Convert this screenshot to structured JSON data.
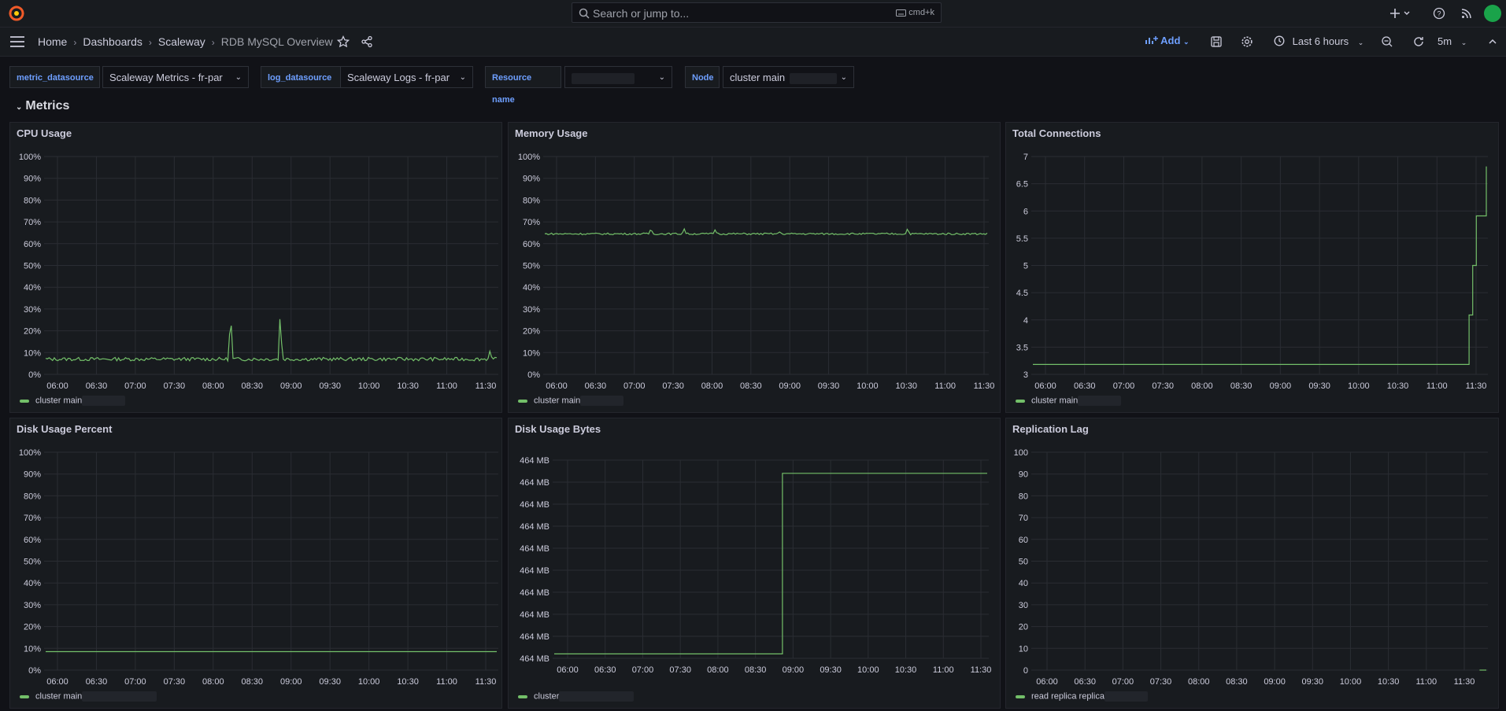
{
  "search": {
    "placeholder": "Search or jump to...",
    "shortcut": "cmd+k"
  },
  "breadcrumb": {
    "home": "Home",
    "dashboards": "Dashboards",
    "folder": "Scaleway",
    "current": "RDB MySQL Overview"
  },
  "toolbar": {
    "add_label": "Add",
    "time_range": "Last 6 hours",
    "refresh": "5m"
  },
  "variables": [
    {
      "label": "metric_datasource",
      "value": "Scaleway Metrics - fr-par"
    },
    {
      "label": "log_datasource",
      "value": "Scaleway Logs - fr-par"
    },
    {
      "label": "Resource name",
      "value": ""
    },
    {
      "label": "Node",
      "value": "cluster main"
    }
  ],
  "row": {
    "title": "Metrics"
  },
  "colors": {
    "series": "#73bf69",
    "accent": "#6e9fff",
    "grid": "#2a2d33"
  },
  "panels": [
    {
      "title": "CPU Usage",
      "legend": "cluster main",
      "chart_data": {
        "type": "line",
        "x": [
          "06:00",
          "06:30",
          "07:00",
          "07:30",
          "08:00",
          "08:30",
          "09:00",
          "09:30",
          "10:00",
          "10:30",
          "11:00",
          "11:30"
        ],
        "yticks": [
          "0%",
          "10%",
          "20%",
          "30%",
          "40%",
          "50%",
          "60%",
          "70%",
          "80%",
          "90%",
          "100%"
        ],
        "ylim": [
          0,
          100
        ],
        "series": [
          {
            "name": "cluster main",
            "baseline": 7,
            "spikes": [
              [
                0.41,
                30
              ],
              [
                0.52,
                29
              ],
              [
                0.985,
                11
              ]
            ]
          }
        ]
      }
    },
    {
      "title": "Memory Usage",
      "legend": "cluster main",
      "chart_data": {
        "type": "line",
        "x": [
          "06:00",
          "06:30",
          "07:00",
          "07:30",
          "08:00",
          "08:30",
          "09:00",
          "09:30",
          "10:00",
          "10:30",
          "11:00",
          "11:30"
        ],
        "yticks": [
          "0%",
          "10%",
          "20%",
          "30%",
          "40%",
          "50%",
          "60%",
          "70%",
          "80%",
          "90%",
          "100%"
        ],
        "ylim": [
          0,
          100
        ],
        "series": [
          {
            "name": "cluster main",
            "baseline": 64.5,
            "spikes": [
              [
                0.24,
                67
              ],
              [
                0.315,
                67
              ],
              [
                0.385,
                66.5
              ],
              [
                0.53,
                65.5
              ],
              [
                0.82,
                67
              ]
            ]
          }
        ]
      }
    },
    {
      "title": "Total Connections",
      "legend": "cluster main",
      "chart_data": {
        "type": "line",
        "x": [
          "06:00",
          "06:30",
          "07:00",
          "07:30",
          "08:00",
          "08:30",
          "09:00",
          "09:30",
          "10:00",
          "10:30",
          "11:00",
          "11:30"
        ],
        "yticks": [
          "3",
          "3.5",
          "4",
          "4.5",
          "5",
          "5.5",
          "6",
          "6.5",
          "7"
        ],
        "ylim": [
          2.8,
          7.2
        ],
        "series": [
          {
            "name": "cluster main",
            "steps": [
              [
                0,
                3
              ],
              [
                0.956,
                3
              ],
              [
                0.962,
                4
              ],
              [
                0.97,
                5
              ],
              [
                0.978,
                6
              ],
              [
                0.99,
                6
              ],
              [
                1.0,
                7
              ]
            ]
          }
        ]
      }
    },
    {
      "title": "Disk Usage Percent",
      "legend": "cluster main",
      "chart_data": {
        "type": "line",
        "x": [
          "06:00",
          "06:30",
          "07:00",
          "07:30",
          "08:00",
          "08:30",
          "09:00",
          "09:30",
          "10:00",
          "10:30",
          "11:00",
          "11:30"
        ],
        "yticks": [
          "0%",
          "10%",
          "20%",
          "30%",
          "40%",
          "50%",
          "60%",
          "70%",
          "80%",
          "90%",
          "100%"
        ],
        "ylim": [
          0,
          100
        ],
        "series": [
          {
            "name": "cluster main",
            "steps": [
              [
                0,
                8.5
              ],
              [
                1.0,
                8.5
              ]
            ]
          }
        ]
      }
    },
    {
      "title": "Disk Usage Bytes",
      "legend": "cluster",
      "chart_data": {
        "type": "line",
        "x": [
          "06:00",
          "06:30",
          "07:00",
          "07:30",
          "08:00",
          "08:30",
          "09:00",
          "09:30",
          "10:00",
          "10:30",
          "11:00",
          "11:30"
        ],
        "yticks": [
          "464 MB",
          "464 MB",
          "464 MB",
          "464 MB",
          "464 MB",
          "464 MB",
          "464 MB",
          "464 MB",
          "464 MB",
          "464 MB"
        ],
        "ylim": [
          0,
          9
        ],
        "series": [
          {
            "name": "cluster",
            "steps": [
              [
                0,
                0.2
              ],
              [
                0.527,
                0.2
              ],
              [
                0.527,
                8.4
              ],
              [
                1.0,
                8.4
              ]
            ]
          }
        ]
      }
    },
    {
      "title": "Replication Lag",
      "legend": "read replica replica",
      "chart_data": {
        "type": "line",
        "x": [
          "06:00",
          "06:30",
          "07:00",
          "07:30",
          "08:00",
          "08:30",
          "09:00",
          "09:30",
          "10:00",
          "10:30",
          "11:00",
          "11:30"
        ],
        "yticks": [
          "0",
          "10",
          "20",
          "30",
          "40",
          "50",
          "60",
          "70",
          "80",
          "90",
          "100"
        ],
        "ylim": [
          0,
          100
        ],
        "series": [
          {
            "name": "read replica replica",
            "steps": [
              [
                0.985,
                0
              ],
              [
                1.0,
                0
              ]
            ]
          }
        ]
      }
    }
  ]
}
